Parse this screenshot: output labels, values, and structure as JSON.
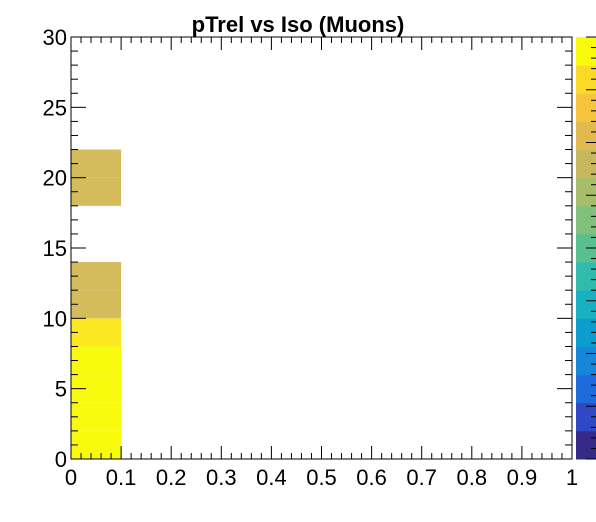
{
  "chart_data": {
    "type": "heatmap",
    "title": "pTrel vs Iso (Muons)",
    "xlabel": "",
    "ylabel": "",
    "xlim": [
      0,
      1
    ],
    "ylim": [
      0,
      30
    ],
    "x_ticks": [
      0,
      0.1,
      0.2,
      0.3,
      0.4,
      0.5,
      0.6,
      0.7,
      0.8,
      0.9,
      1
    ],
    "x_tick_labels": [
      "0",
      "0.1",
      "0.2",
      "0.3",
      "0.4",
      "0.5",
      "0.6",
      "0.7",
      "0.8",
      "0.9",
      "1"
    ],
    "y_ticks": [
      0,
      5,
      10,
      15,
      20,
      25,
      30
    ],
    "y_tick_labels": [
      "0",
      "5",
      "10",
      "15",
      "20",
      "25",
      "30"
    ],
    "cells": [
      {
        "x0": 0,
        "x1": 0.1,
        "y0": 0,
        "y1": 2,
        "level": 1.0
      },
      {
        "x0": 0,
        "x1": 0.1,
        "y0": 2,
        "y1": 4,
        "level": 1.0
      },
      {
        "x0": 0,
        "x1": 0.1,
        "y0": 4,
        "y1": 6,
        "level": 1.0
      },
      {
        "x0": 0,
        "x1": 0.1,
        "y0": 6,
        "y1": 8,
        "level": 1.0
      },
      {
        "x0": 0,
        "x1": 0.1,
        "y0": 8,
        "y1": 10,
        "level": 0.95
      },
      {
        "x0": 0,
        "x1": 0.1,
        "y0": 10,
        "y1": 12,
        "level": 0.8
      },
      {
        "x0": 0,
        "x1": 0.1,
        "y0": 12,
        "y1": 14,
        "level": 0.8
      },
      {
        "x0": 0,
        "x1": 0.1,
        "y0": 18,
        "y1": 20,
        "level": 0.8
      },
      {
        "x0": 0,
        "x1": 0.1,
        "y0": 20,
        "y1": 22,
        "level": 0.8
      }
    ],
    "palette": [
      "#352a87",
      "#2f49c4",
      "#1f6bdc",
      "#1886d8",
      "#0c9dcf",
      "#17b1c2",
      "#30bbac",
      "#58c08f",
      "#80c07c",
      "#a6bd6b",
      "#c7b85f",
      "#e1b950",
      "#f5c63d",
      "#f9da27",
      "#f9fb0e"
    ],
    "colorbar": true
  }
}
